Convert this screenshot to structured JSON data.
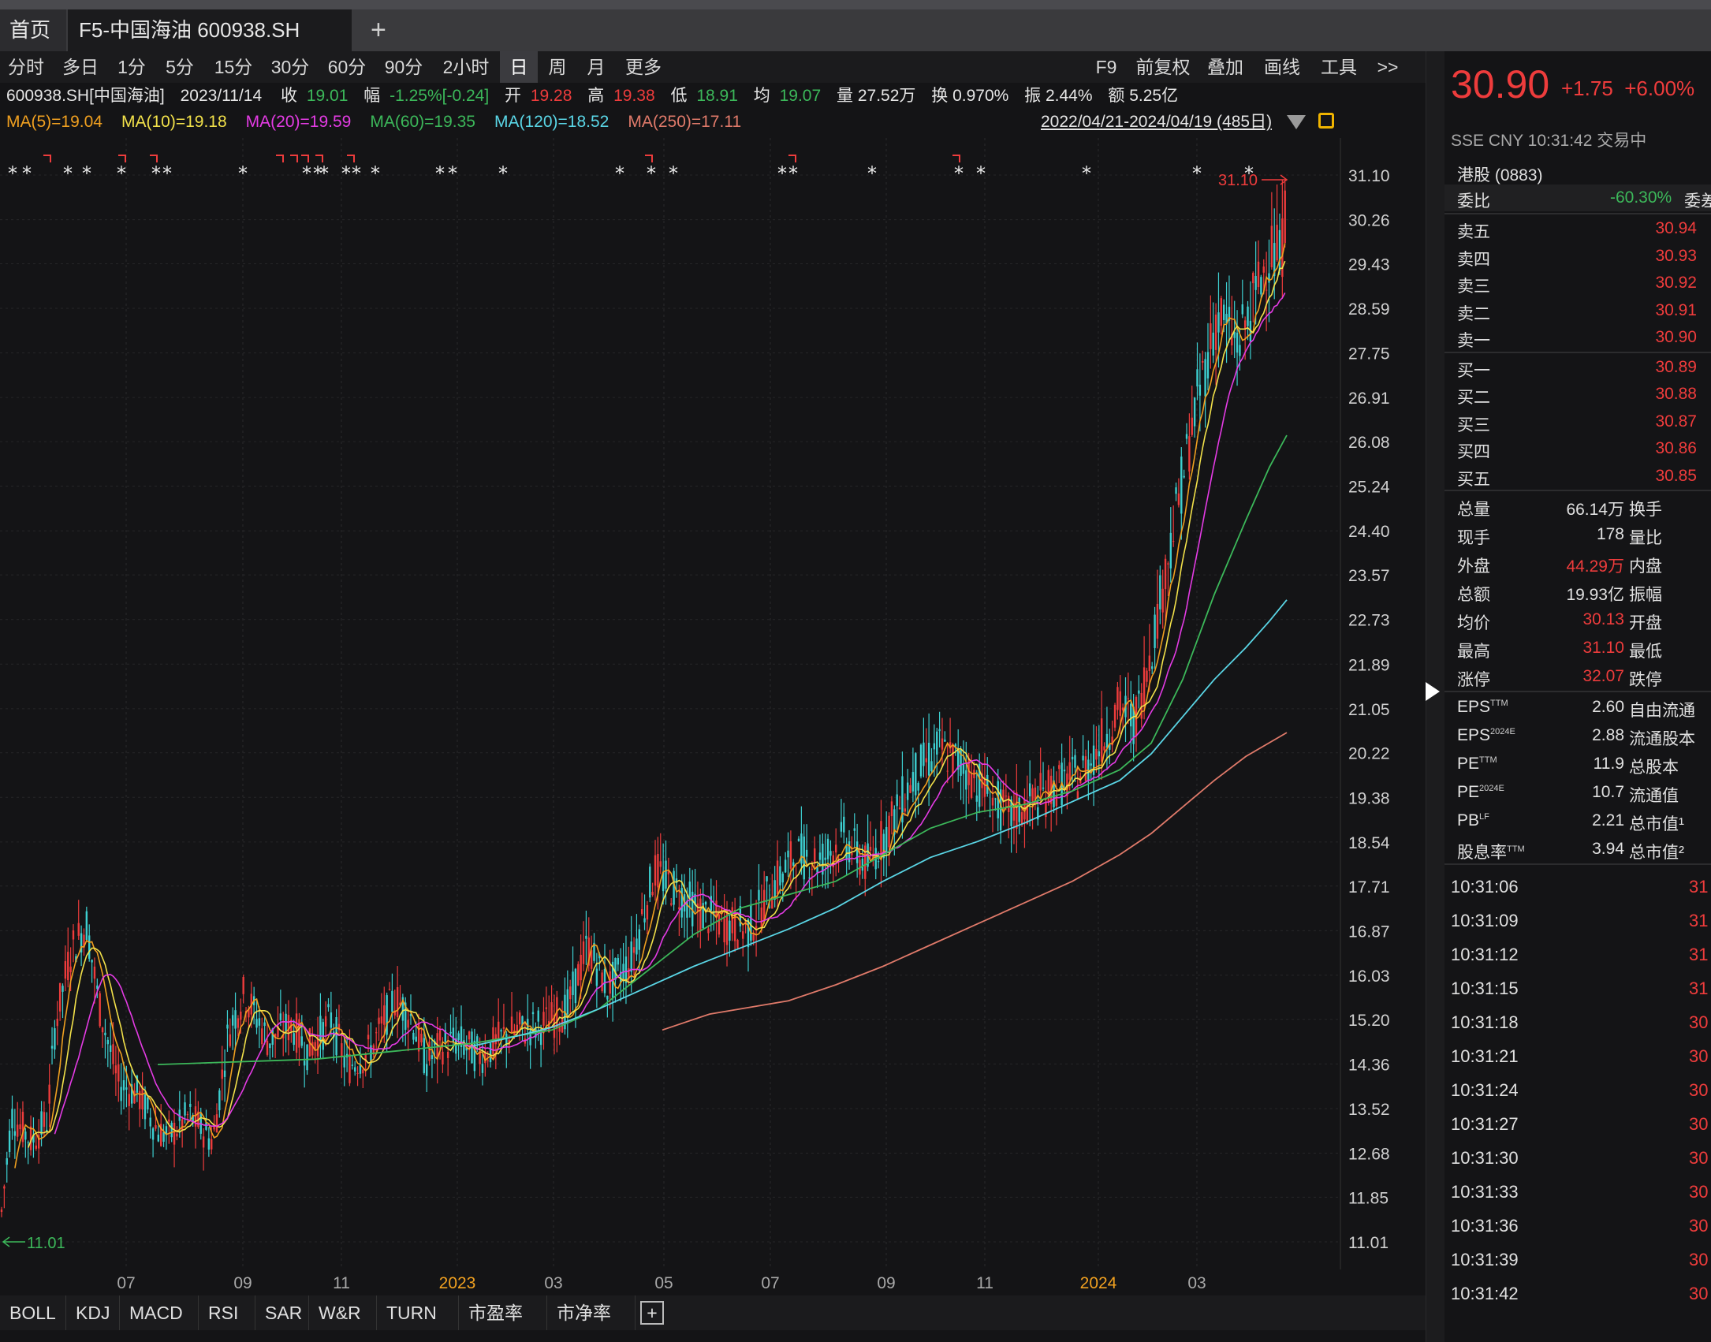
{
  "tabs": {
    "home": "首页",
    "main": "F5-中国海油 600938.SH",
    "add": "+"
  },
  "periods": [
    "分时",
    "多日",
    "1分",
    "5分",
    "15分",
    "30分",
    "60分",
    "90分",
    "2小时",
    "日",
    "周",
    "月",
    "更多"
  ],
  "periods_selected": "日",
  "tools": [
    "F9",
    "前复权",
    "叠加",
    "画线",
    "工具",
    ">>"
  ],
  "info": {
    "code": "600938.SH[中国海油]",
    "date": "2023/11/14",
    "close_label": "收",
    "close": "19.01",
    "amp_label": "幅",
    "amp": "-1.25%[-0.24]",
    "open_label": "开",
    "open": "19.28",
    "high_label": "高",
    "high": "19.38",
    "low_label": "低",
    "low": "18.91",
    "avg_label": "均",
    "avg": "19.07",
    "vol": "量 27.52万",
    "turn": "换 0.970%",
    "swing": "振 2.44%",
    "amt": "额 5.25亿"
  },
  "ma": [
    {
      "text": "MA(5)=19.04",
      "color": "#f0a020"
    },
    {
      "text": "MA(10)=19.18",
      "color": "#f2e14a"
    },
    {
      "text": "MA(20)=19.59",
      "color": "#e43be4"
    },
    {
      "text": "MA(60)=19.35",
      "color": "#3cb85a"
    },
    {
      "text": "MA(120)=18.52",
      "color": "#5ad6e6"
    },
    {
      "text": "MA(250)=17.11",
      "color": "#e07a6a"
    }
  ],
  "range": "2022/04/21-2024/04/19 (485日)",
  "chart_data": {
    "type": "candlestick",
    "y_ticks": [
      "31.10",
      "30.26",
      "29.43",
      "28.59",
      "27.75",
      "26.91",
      "26.08",
      "25.24",
      "24.40",
      "23.57",
      "22.73",
      "21.89",
      "21.05",
      "20.22",
      "19.38",
      "18.54",
      "17.71",
      "16.87",
      "16.03",
      "15.20",
      "14.36",
      "13.52",
      "12.68",
      "11.85",
      "11.01"
    ],
    "ylim": [
      11.01,
      31.1
    ],
    "x_ticks": [
      {
        "label": "07",
        "color": "#a8a8a8"
      },
      {
        "label": "09",
        "color": "#a8a8a8"
      },
      {
        "label": "11",
        "color": "#a8a8a8"
      },
      {
        "label": "2023",
        "color": "#f0a020"
      },
      {
        "label": "03",
        "color": "#a8a8a8"
      },
      {
        "label": "05",
        "color": "#a8a8a8"
      },
      {
        "label": "07",
        "color": "#a8a8a8"
      },
      {
        "label": "09",
        "color": "#a8a8a8"
      },
      {
        "label": "11",
        "color": "#a8a8a8"
      },
      {
        "label": "2024",
        "color": "#f0a020"
      },
      {
        "label": "03",
        "color": "#a8a8a8"
      }
    ],
    "high_label": "31.10",
    "low_label": "11.01",
    "close_path_key": [
      [
        0,
        11.3
      ],
      [
        15,
        13.4
      ],
      [
        40,
        12.9
      ],
      [
        60,
        13.3
      ],
      [
        70,
        15.1
      ],
      [
        90,
        16.5
      ],
      [
        110,
        17.0
      ],
      [
        125,
        15.5
      ],
      [
        150,
        14.0
      ],
      [
        175,
        13.8
      ],
      [
        200,
        13.1
      ],
      [
        215,
        13.0
      ],
      [
        240,
        13.4
      ],
      [
        270,
        12.9
      ],
      [
        290,
        15.0
      ],
      [
        310,
        15.7
      ],
      [
        340,
        14.8
      ],
      [
        370,
        15.1
      ],
      [
        390,
        14.6
      ],
      [
        420,
        15.2
      ],
      [
        440,
        14.3
      ],
      [
        470,
        14.6
      ],
      [
        500,
        15.6
      ],
      [
        520,
        15.3
      ],
      [
        540,
        14.4
      ],
      [
        560,
        14.7
      ],
      [
        580,
        14.8
      ],
      [
        610,
        14.5
      ],
      [
        640,
        14.9
      ],
      [
        660,
        15.0
      ],
      [
        690,
        15.1
      ],
      [
        720,
        15.4
      ],
      [
        745,
        16.6
      ],
      [
        770,
        15.8
      ],
      [
        800,
        16.3
      ],
      [
        830,
        18.0
      ],
      [
        860,
        17.6
      ],
      [
        890,
        17.2
      ],
      [
        920,
        17.0
      ],
      [
        950,
        16.9
      ],
      [
        980,
        17.7
      ],
      [
        1010,
        18.3
      ],
      [
        1040,
        18.2
      ],
      [
        1070,
        18.6
      ],
      [
        1100,
        18.1
      ],
      [
        1130,
        18.9
      ],
      [
        1160,
        19.8
      ],
      [
        1190,
        20.3
      ],
      [
        1220,
        20.0
      ],
      [
        1250,
        19.5
      ],
      [
        1280,
        19.0
      ],
      [
        1310,
        19.3
      ],
      [
        1340,
        19.6
      ],
      [
        1370,
        19.8
      ],
      [
        1400,
        20.5
      ],
      [
        1420,
        21.1
      ],
      [
        1440,
        20.8
      ],
      [
        1460,
        22.2
      ],
      [
        1480,
        23.8
      ],
      [
        1500,
        25.4
      ],
      [
        1520,
        27.0
      ],
      [
        1545,
        28.5
      ],
      [
        1570,
        27.9
      ],
      [
        1590,
        28.7
      ],
      [
        1610,
        29.7
      ],
      [
        1625,
        29.5
      ],
      [
        1632,
        30.9
      ]
    ],
    "ma_series": [
      {
        "name": "MA(60)",
        "color": "#3cb85a",
        "start": 200,
        "pts": [
          [
            200,
            14.35
          ],
          [
            300,
            14.4
          ],
          [
            400,
            14.45
          ],
          [
            500,
            14.6
          ],
          [
            600,
            14.75
          ],
          [
            700,
            15.0
          ],
          [
            760,
            15.4
          ],
          [
            820,
            16.1
          ],
          [
            880,
            16.8
          ],
          [
            940,
            17.3
          ],
          [
            1000,
            17.55
          ],
          [
            1060,
            17.8
          ],
          [
            1120,
            18.3
          ],
          [
            1180,
            18.8
          ],
          [
            1240,
            19.1
          ],
          [
            1300,
            19.25
          ],
          [
            1360,
            19.5
          ],
          [
            1420,
            19.9
          ],
          [
            1460,
            20.4
          ],
          [
            1500,
            21.6
          ],
          [
            1540,
            23.2
          ],
          [
            1580,
            24.6
          ],
          [
            1610,
            25.6
          ],
          [
            1632,
            26.2
          ]
        ]
      },
      {
        "name": "MA(120)",
        "color": "#5ad6e6",
        "start": 600,
        "pts": [
          [
            600,
            14.7
          ],
          [
            660,
            14.9
          ],
          [
            700,
            15.05
          ],
          [
            760,
            15.4
          ],
          [
            820,
            15.8
          ],
          [
            880,
            16.2
          ],
          [
            940,
            16.55
          ],
          [
            1000,
            16.9
          ],
          [
            1060,
            17.3
          ],
          [
            1120,
            17.8
          ],
          [
            1180,
            18.25
          ],
          [
            1240,
            18.55
          ],
          [
            1300,
            18.9
          ],
          [
            1360,
            19.3
          ],
          [
            1420,
            19.7
          ],
          [
            1460,
            20.2
          ],
          [
            1500,
            20.9
          ],
          [
            1540,
            21.6
          ],
          [
            1580,
            22.2
          ],
          [
            1610,
            22.7
          ],
          [
            1632,
            23.1
          ]
        ]
      },
      {
        "name": "MA(250)",
        "color": "#e07a6a",
        "start": 840,
        "pts": [
          [
            840,
            15.0
          ],
          [
            900,
            15.3
          ],
          [
            960,
            15.45
          ],
          [
            1000,
            15.55
          ],
          [
            1060,
            15.85
          ],
          [
            1120,
            16.2
          ],
          [
            1180,
            16.6
          ],
          [
            1240,
            17.0
          ],
          [
            1300,
            17.4
          ],
          [
            1360,
            17.8
          ],
          [
            1420,
            18.3
          ],
          [
            1460,
            18.7
          ],
          [
            1500,
            19.2
          ],
          [
            1540,
            19.7
          ],
          [
            1580,
            20.15
          ],
          [
            1632,
            20.6
          ]
        ]
      }
    ]
  },
  "indicators": [
    "BOLL",
    "KDJ",
    "MACD",
    "RSI",
    "SAR",
    "W&R",
    "TURN",
    "市盈率",
    "市净率",
    "+"
  ],
  "right": {
    "price": "30.90",
    "change": "+1.75",
    "change_pct": "+6.00%",
    "market": "SSE  CNY  10:31:42  交易中",
    "hk": "港股 (0883)",
    "weibi_label": "委比",
    "weibi": "-60.30%",
    "weicha": "委差",
    "asks": [
      {
        "label": "卖五",
        "price": "30.94"
      },
      {
        "label": "卖四",
        "price": "30.93"
      },
      {
        "label": "卖三",
        "price": "30.92"
      },
      {
        "label": "卖二",
        "price": "30.91"
      },
      {
        "label": "卖一",
        "price": "30.90"
      }
    ],
    "bids": [
      {
        "label": "买一",
        "price": "30.89"
      },
      {
        "label": "买二",
        "price": "30.88"
      },
      {
        "label": "买三",
        "price": "30.87"
      },
      {
        "label": "买四",
        "price": "30.86"
      },
      {
        "label": "买五",
        "price": "30.85"
      }
    ],
    "stats": [
      {
        "label": "总量",
        "value": "66.14万",
        "color": "#e0e0e0",
        "right": "换手"
      },
      {
        "label": "现手",
        "value": "178",
        "color": "#e0e0e0",
        "right": "量比"
      },
      {
        "label": "外盘",
        "value": "44.29万",
        "color": "#ee3c3c",
        "right": "内盘"
      },
      {
        "label": "总额",
        "value": "19.93亿",
        "color": "#e0e0e0",
        "right": "振幅"
      },
      {
        "label": "均价",
        "value": "30.13",
        "color": "#ee3c3c",
        "right": "开盘"
      },
      {
        "label": "最高",
        "value": "31.10",
        "color": "#ee3c3c",
        "right": "最低"
      },
      {
        "label": "涨停",
        "value": "32.07",
        "color": "#ee3c3c",
        "right": "跌停"
      }
    ],
    "fin": [
      {
        "label": "EPS",
        "sup": "TTM",
        "value": "2.60",
        "right": "自由流通"
      },
      {
        "label": "EPS",
        "sup": "2024E",
        "value": "2.88",
        "right": "流通股本"
      },
      {
        "label": "PE",
        "sup": "TTM",
        "value": "11.9",
        "right": "总股本"
      },
      {
        "label": "PE",
        "sup": "2024E",
        "value": "10.7",
        "right": "流通值"
      },
      {
        "label": "PB",
        "sup": "LF",
        "value": "2.21",
        "right": "总市值¹"
      },
      {
        "label": "股息率",
        "sup": "TTM",
        "value": "3.94",
        "right": "总市值²"
      }
    ],
    "ticks": [
      {
        "time": "10:31:06",
        "v": "31"
      },
      {
        "time": "10:31:09",
        "v": "31"
      },
      {
        "time": "10:31:12",
        "v": "31"
      },
      {
        "time": "10:31:15",
        "v": "31"
      },
      {
        "time": "10:31:18",
        "v": "30"
      },
      {
        "time": "10:31:21",
        "v": "30"
      },
      {
        "time": "10:31:24",
        "v": "30"
      },
      {
        "time": "10:31:27",
        "v": "30"
      },
      {
        "time": "10:31:30",
        "v": "30"
      },
      {
        "time": "10:31:33",
        "v": "30"
      },
      {
        "time": "10:31:36",
        "v": "30"
      },
      {
        "time": "10:31:39",
        "v": "30"
      },
      {
        "time": "10:31:42",
        "v": "30"
      }
    ]
  }
}
